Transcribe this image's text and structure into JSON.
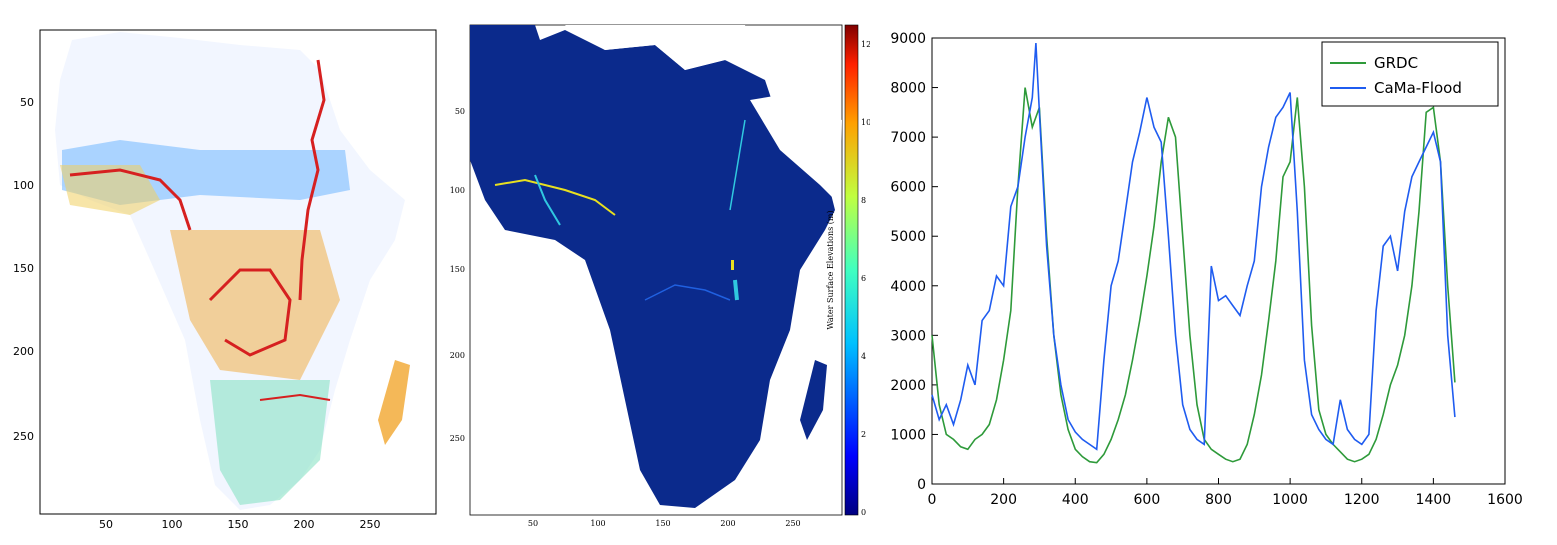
{
  "colors": {
    "grdc": "#2e9a3a",
    "cama_flood": "#1f5cf0",
    "ocean_dark_blue": "#0b2a8c",
    "axis": "#000000",
    "river_red": "#d62020",
    "river_orange": "#f0a020",
    "river_yellow": "#e8e020",
    "river_cyan": "#30c8e0",
    "river_blue": "#2060e0"
  },
  "chart_data": [
    {
      "type": "heatmap",
      "description_panel": "left",
      "x_ticks": [
        "50",
        "100",
        "150",
        "200",
        "250"
      ],
      "y_ticks": [
        "50",
        "100",
        "150",
        "200",
        "250"
      ],
      "xlim": [
        0,
        300
      ],
      "ylim": [
        290,
        0
      ],
      "colormap": "jet"
    },
    {
      "type": "heatmap",
      "description_panel": "middle",
      "x_ticks": [
        "50",
        "100",
        "150",
        "200",
        "250"
      ],
      "y_ticks": [
        "50",
        "100",
        "150",
        "200",
        "250"
      ],
      "xlim": [
        0,
        300
      ],
      "ylim": [
        290,
        0
      ],
      "colorbar_label": "Water Surface Elevations (m)",
      "colorbar_ticks": [
        "0",
        "2",
        "4",
        "6",
        "8",
        "10",
        "12"
      ],
      "colorbar_range": [
        0,
        12.5
      ],
      "colormap": "jet"
    },
    {
      "type": "line",
      "description_panel": "right",
      "xlim": [
        0,
        1600
      ],
      "ylim": [
        0,
        9000
      ],
      "x_ticks": [
        "0",
        "200",
        "400",
        "600",
        "800",
        "1000",
        "1200",
        "1400",
        "1600"
      ],
      "y_ticks": [
        "0",
        "1000",
        "2000",
        "3000",
        "4000",
        "5000",
        "6000",
        "7000",
        "8000",
        "9000"
      ],
      "legend_position": "top-right",
      "series": [
        {
          "name": "GRDC",
          "x": [
            0,
            20,
            40,
            60,
            80,
            100,
            120,
            140,
            160,
            180,
            200,
            220,
            240,
            260,
            280,
            300,
            320,
            340,
            360,
            380,
            400,
            420,
            440,
            460,
            480,
            500,
            520,
            540,
            560,
            580,
            600,
            620,
            640,
            660,
            680,
            700,
            720,
            740,
            760,
            780,
            800,
            820,
            840,
            860,
            880,
            900,
            920,
            940,
            960,
            980,
            1000,
            1020,
            1040,
            1060,
            1080,
            1100,
            1120,
            1140,
            1160,
            1180,
            1200,
            1220,
            1240,
            1260,
            1280,
            1300,
            1320,
            1340,
            1360,
            1380,
            1400,
            1420,
            1440,
            1460
          ],
          "y": [
            3000,
            1600,
            1000,
            900,
            750,
            700,
            900,
            1000,
            1200,
            1700,
            2500,
            3500,
            6000,
            8000,
            7200,
            7600,
            5000,
            3000,
            1800,
            1100,
            700,
            550,
            450,
            430,
            600,
            900,
            1300,
            1800,
            2500,
            3300,
            4200,
            5200,
            6500,
            7400,
            7000,
            5000,
            3000,
            1600,
            900,
            700,
            600,
            500,
            450,
            500,
            800,
            1400,
            2200,
            3300,
            4500,
            6200,
            6500,
            7800,
            6000,
            3200,
            1500,
            1000,
            800,
            650,
            500,
            450,
            500,
            600,
            900,
            1400,
            2000,
            2400,
            3000,
            4000,
            5500,
            7500,
            7600,
            6500,
            4000,
            2050
          ]
        },
        {
          "name": "CaMa-Flood",
          "x": [
            0,
            20,
            40,
            60,
            80,
            100,
            120,
            140,
            160,
            180,
            200,
            220,
            240,
            260,
            280,
            290,
            300,
            320,
            340,
            360,
            380,
            400,
            420,
            440,
            460,
            480,
            500,
            520,
            540,
            560,
            580,
            600,
            620,
            640,
            660,
            680,
            700,
            720,
            740,
            760,
            780,
            800,
            820,
            840,
            860,
            880,
            900,
            920,
            940,
            960,
            980,
            1000,
            1020,
            1040,
            1060,
            1080,
            1100,
            1120,
            1140,
            1160,
            1180,
            1200,
            1220,
            1240,
            1260,
            1280,
            1300,
            1320,
            1340,
            1360,
            1380,
            1400,
            1420,
            1440,
            1460
          ],
          "y": [
            1800,
            1300,
            1600,
            1200,
            1700,
            2400,
            2000,
            3300,
            3500,
            4200,
            4000,
            5600,
            6000,
            7000,
            7800,
            8900,
            7500,
            4800,
            3000,
            2000,
            1300,
            1050,
            900,
            800,
            700,
            2500,
            4000,
            4500,
            5500,
            6500,
            7100,
            7800,
            7200,
            6900,
            5000,
            3000,
            1600,
            1100,
            900,
            800,
            4400,
            3700,
            3800,
            3600,
            3400,
            4000,
            4500,
            6000,
            6800,
            7400,
            7600,
            7900,
            5500,
            2500,
            1400,
            1100,
            900,
            800,
            1700,
            1100,
            900,
            800,
            1000,
            3500,
            4800,
            5000,
            4300,
            5500,
            6200,
            6500,
            6800,
            7100,
            6500,
            3000,
            1350
          ]
        }
      ]
    }
  ]
}
